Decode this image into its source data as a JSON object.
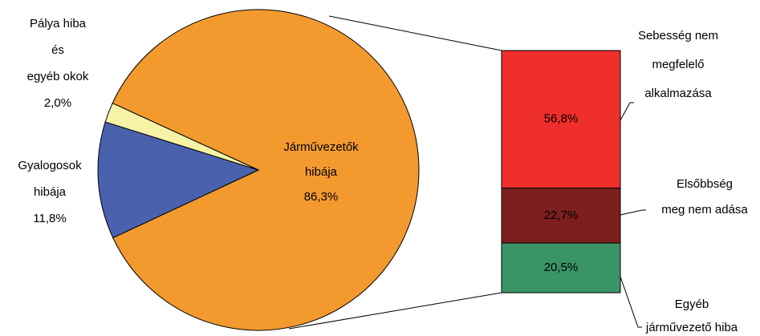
{
  "chart_data": {
    "type": "bar-of-pie",
    "pie": {
      "categories": [
        "Járművezetők\nhibája",
        "Gyalogosok\nhibája",
        "Pálya hiba\nés\negyéb okok"
      ],
      "values": [
        86.3,
        11.8,
        2.0
      ],
      "value_labels": [
        "86,3%",
        "11,8%",
        "2,0%"
      ],
      "colors": [
        "#f39a2f",
        "#4a62ad",
        "#f6f3a6"
      ]
    },
    "bar": {
      "categories": [
        "Sebesség nem\nmegfelelő\nalkalmazása",
        "Elsőbbség\nmeg nem adása",
        "Egyéb\njárművezető hiba"
      ],
      "values": [
        56.8,
        22.7,
        20.5
      ],
      "value_labels": [
        "56,8%",
        "22,7%",
        "20,5%"
      ],
      "colors": [
        "#ee2f2b",
        "#7d1f1f",
        "#3a9466"
      ]
    }
  }
}
